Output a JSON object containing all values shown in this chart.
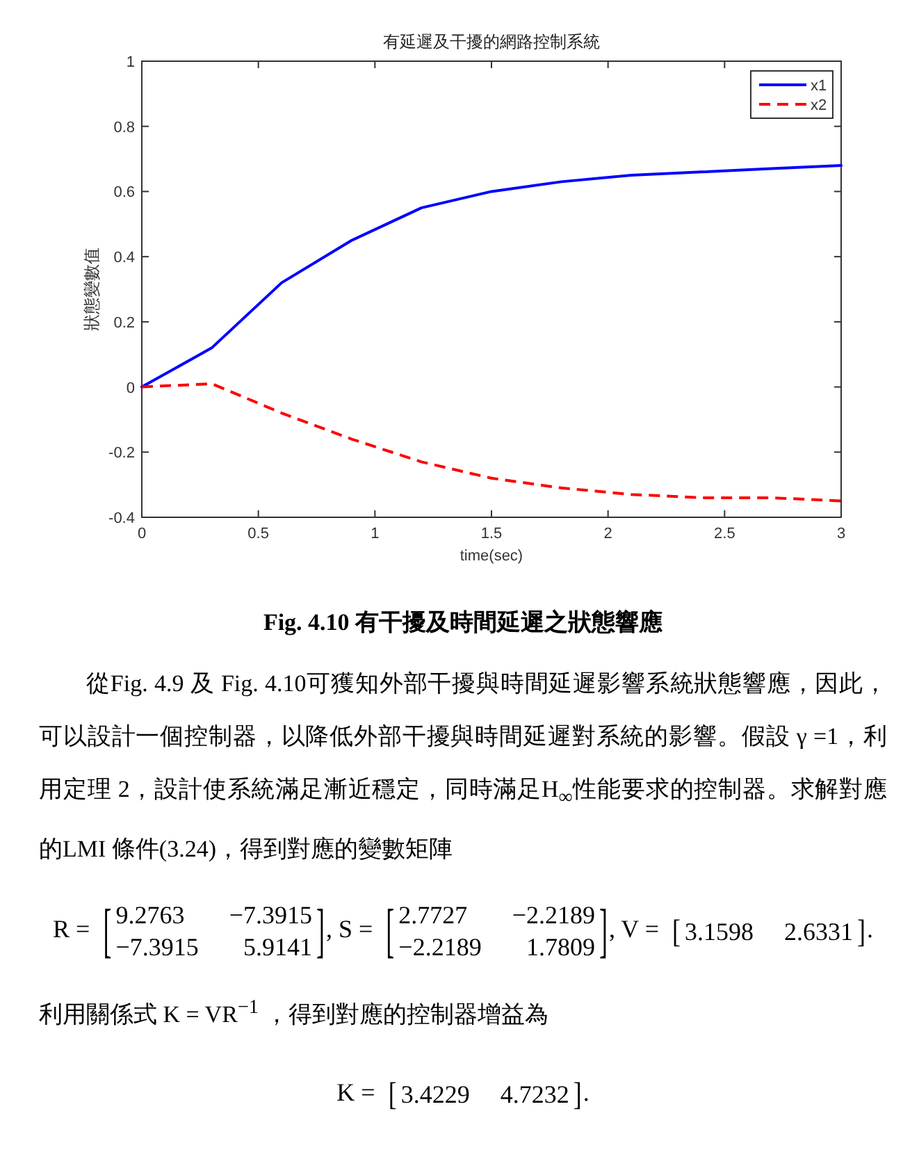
{
  "chart_data": {
    "type": "line",
    "title": "有延遲及干擾的網路控制系統",
    "xlabel": "time(sec)",
    "ylabel": "狀態變數值",
    "x": [
      0,
      0.3,
      0.6,
      0.9,
      1.2,
      1.5,
      1.8,
      2.1,
      2.4,
      2.7,
      3
    ],
    "series": [
      {
        "name": "x1",
        "color": "#0000ff",
        "line_style": "solid",
        "values": [
          0,
          0.12,
          0.32,
          0.45,
          0.55,
          0.6,
          0.63,
          0.65,
          0.66,
          0.67,
          0.68
        ]
      },
      {
        "name": "x2",
        "color": "#ff0000",
        "line_style": "dashed",
        "values": [
          0,
          0.01,
          -0.08,
          -0.16,
          -0.23,
          -0.28,
          -0.31,
          -0.33,
          -0.34,
          -0.34,
          -0.35
        ]
      }
    ],
    "xlim": [
      0,
      3
    ],
    "ylim": [
      -0.4,
      1
    ],
    "xticks": [
      0,
      0.5,
      1,
      1.5,
      2,
      2.5,
      3
    ],
    "yticks": [
      -0.4,
      -0.2,
      0,
      0.2,
      0.4,
      0.6,
      0.8,
      1
    ],
    "legend": "top right",
    "annotations": [
      "Fig. 4.10 有干擾及時間延遲之狀態響應",
      "從Fig. 4.9 及 Fig. 4.10可獲知外部干擾與時間延遲影響系統狀態響應，因此，可以設計一個控制器，以降低外部干擾與時間延遲對系統的影響。假設 γ =1，利用定理 2，設計使系統滿足漸近穩定，同時滿足H$_{∞}$性能要求的控制器。求解對應的LMI 條件(3.24)，得到對應的變數矩陣",
      "R = [9.2763 −7.3915\n−7.3915 5.9141], S = [2.7727 −2.2189\n−2.2189 1.7809], V = [3.1598 2.6331].",
      "利用關係式 K = VR$^{−1}$ ，得到對應的控制器增益為",
      "K = [3.4229 4.7232]."
    ]
  }
}
